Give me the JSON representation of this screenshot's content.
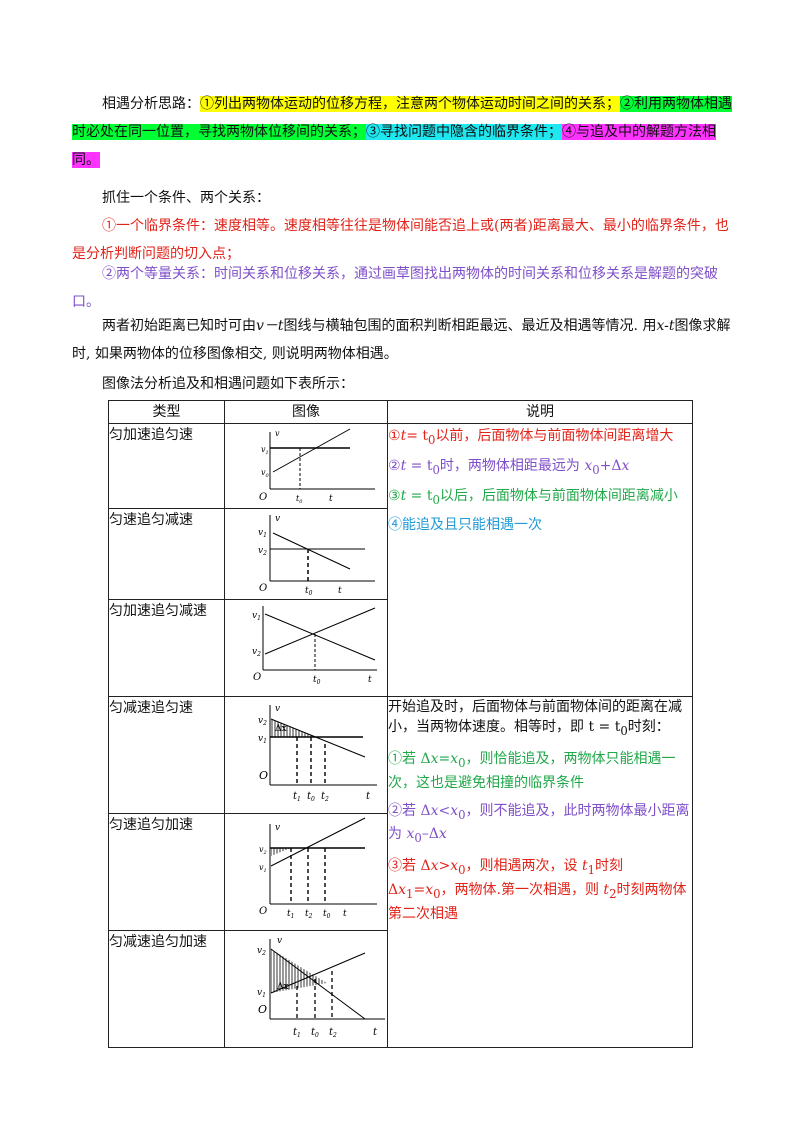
{
  "intro": {
    "label": "相遇分析思路：",
    "h1": "①列出两物体运动的位移方程，注意两个物体运动时间之间的关系；",
    "h2": "②利用两物体相遇时必处在同一位置，寻找两物体位移间的关系；",
    "h3": "③寻找问题中隐含的临界条件；",
    "h4": "④与追及中的解题方法相同。"
  },
  "grasp": "抓住一个条件、两个关系：",
  "cond1": "①一个临界条件：速度相等。速度相等往往是物体间能否追上或(两者)距离最大、最小的临界条件，也是分析判断问题的切入点；",
  "cond2": "②两个等量关系：时间关系和位移关系，通过画草图找出两物体的时间关系和位移关系是解题的突破口。",
  "para3": {
    "a": "两者初始距离已知时可由",
    "vt": "v－t",
    "b": "图线与横轴包围的面积判断相距最远、最近及相遇等情况. 用",
    "xt": "x-t",
    "c": "图像求解时, 如果两物体的位移图像相交, 则说明两物体相遇。"
  },
  "table_intro": "图像法分析追及和相遇问题如下表所示：",
  "table": {
    "headers": [
      "类型",
      "图像",
      "说明"
    ],
    "types": [
      "匀加速追匀速",
      "匀速追匀减速",
      "匀加速追匀减速",
      "匀减速追匀速",
      "匀速追匀加速",
      "匀减速追匀加速"
    ],
    "group1": {
      "d1a": "①",
      "d1b": "t",
      "d1c": "= t",
      "d1d": "0",
      "d1e": "以前，后面物体与前面物体间距离增大",
      "d2a": "②",
      "d2b": "t",
      "d2c": " = t",
      "d2d": "0",
      "d2e": "时，两物体相距最远为 ",
      "d2f": "x",
      "d2g": "0",
      "d2h": "+Δ",
      "d2i": "x",
      "d3a": "③",
      "d3b": "t",
      "d3c": " = t",
      "d3d": "0",
      "d3e": "以后，后面物体与前面物体间距离减小",
      "d4": "④能追及且只能相遇一次"
    },
    "group2": {
      "p1": "开始追及时，后面物体与前面物体间的距离在减小，当两物体速度。相等时，即 t = t",
      "p1sub": "0",
      "p1end": "时刻：",
      "g1a": "①若 Δ",
      "g1b": "x",
      "g1c": "=",
      "g1d": "x",
      "g1e": "0",
      "g1f": "，则恰能追及，两物体只能相遇一次，这也是避免相撞的临界条件",
      "g2a": "②若 Δ",
      "g2b": "x",
      "g2c": "<",
      "g2d": "x",
      "g2e": "0",
      "g2f": "，则不能追及，此时两物体最小距离为 ",
      "g2g": "x",
      "g2h": "0",
      "g2i": "–Δ",
      "g2j": "x",
      "g3a": "③若 Δ",
      "g3b": "x",
      "g3c": ">",
      "g3d": "x",
      "g3e": "0",
      "g3f": "，则相遇两次，设 ",
      "g3g": "t",
      "g3h": "1",
      "g3i": "时刻 Δ",
      "g3j": "x",
      "g3k": "1",
      "g3l": "=",
      "g3m": "x",
      "g3n": "0",
      "g3o": "，两物体.第一次相遇，则 ",
      "g3p": "t",
      "g3q": "2",
      "g3r": "时刻两物体第二次相遇"
    }
  },
  "graph_labels": {
    "v": "v",
    "t": "t",
    "O": "O",
    "v1": "v",
    "v2": "v",
    "s1": "1",
    "s2": "2",
    "t0": "t",
    "t1": "t",
    "t2": "t",
    "s0": "0",
    "dx": "Δx"
  },
  "colors": {
    "red": "#e2231a",
    "purple": "#7f4fc9",
    "green": "#22a84a",
    "cyan": "#1f9ad6"
  }
}
